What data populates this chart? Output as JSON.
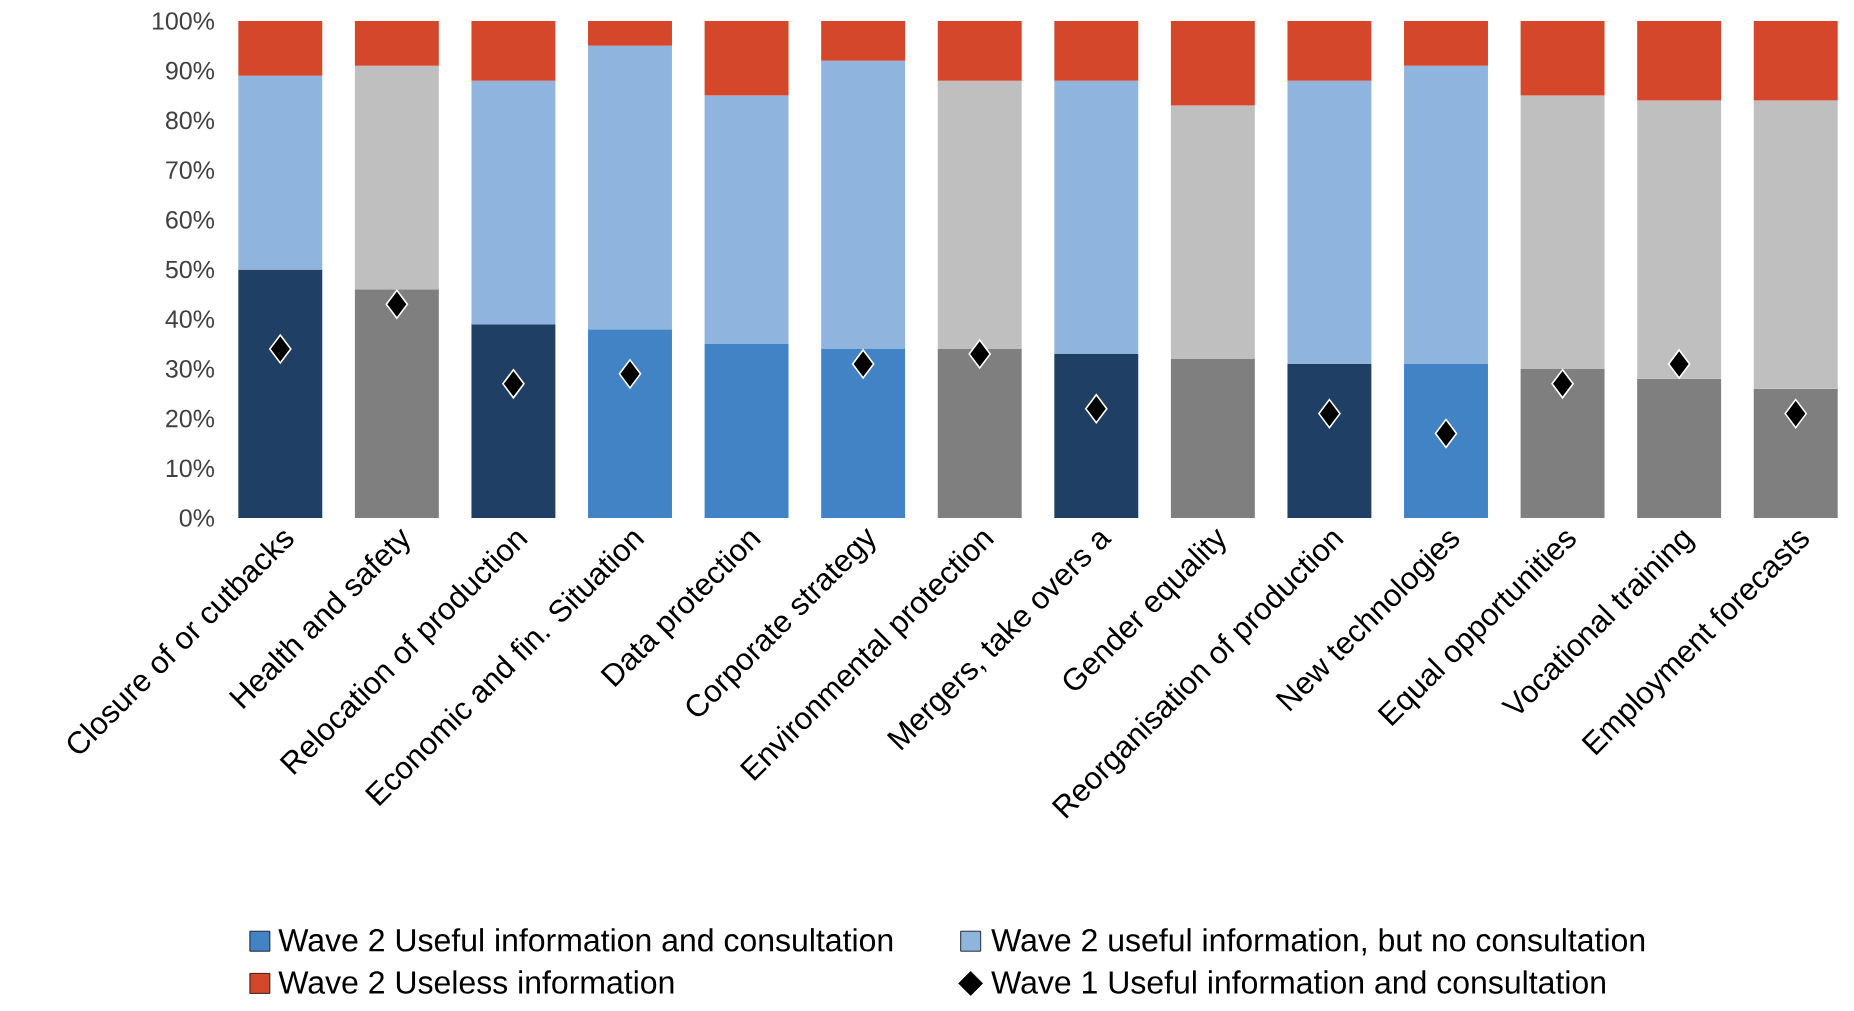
{
  "chart_data": {
    "type": "bar",
    "stacked": true,
    "legend": "bottom",
    "categories": [
      "Closure of or cutbacks",
      "Health and safety",
      "Relocation of production",
      "Economic and fin. Situation",
      "Data protection",
      "Corporate strategy",
      "Environmental protection",
      "Mergers, take overs a",
      "Gender equality",
      "Reorganisation of production",
      "New technologies",
      "Equal opportunities",
      "Vocational training",
      "Employment forecasts"
    ],
    "ylim": [
      0,
      100
    ],
    "yticks": [
      {
        "value": 0,
        "label": "0%"
      },
      {
        "value": 10,
        "label": "10%"
      },
      {
        "value": 20,
        "label": "20%"
      },
      {
        "value": 30,
        "label": "30%"
      },
      {
        "value": 40,
        "label": "40%"
      },
      {
        "value": 50,
        "label": "50%"
      },
      {
        "value": 60,
        "label": "60%"
      },
      {
        "value": 70,
        "label": "70%"
      },
      {
        "value": 80,
        "label": "80%"
      },
      {
        "value": 90,
        "label": "90%"
      },
      {
        "value": 100,
        "label": "100%"
      }
    ],
    "series": [
      {
        "name": "Wave 2 Useful information and consultation",
        "color": "#4283c6",
        "values": [
          50,
          46,
          39,
          38,
          35,
          34,
          34,
          33,
          32,
          31,
          31,
          30,
          28,
          26
        ],
        "colors": [
          "#1f4064",
          "#7f7f7f",
          "#1f4064",
          "#4283c6",
          "#4283c6",
          "#4283c6",
          "#7f7f7f",
          "#1f4064",
          "#7f7f7f",
          "#1f4064",
          "#4283c6",
          "#7f7f7f",
          "#7f7f7f",
          "#7f7f7f"
        ]
      },
      {
        "name": "Wave 2 useful information, but no consultation",
        "color": "#8fb4de",
        "values": [
          39,
          45,
          49,
          57,
          50,
          58,
          54,
          55,
          51,
          57,
          60,
          55,
          56,
          58
        ],
        "colors": [
          "#8fb4de",
          "#bfbfbf",
          "#8fb4de",
          "#8fb4de",
          "#8fb4de",
          "#8fb4de",
          "#bfbfbf",
          "#8fb4de",
          "#bfbfbf",
          "#8fb4de",
          "#8fb4de",
          "#bfbfbf",
          "#bfbfbf",
          "#bfbfbf"
        ]
      },
      {
        "name": "Wave 2 Useless information",
        "color": "#d5472b",
        "values": [
          11,
          9,
          12,
          5,
          15,
          8,
          12,
          12,
          17,
          12,
          9,
          15,
          16,
          16
        ]
      },
      {
        "name": "Wave 1 Useful information and consultation",
        "type": "scatter",
        "marker": "diamond",
        "color": "#000000",
        "values": [
          34,
          43,
          27,
          29,
          null,
          31,
          33,
          22,
          null,
          21,
          17,
          27,
          31,
          21
        ]
      }
    ]
  }
}
